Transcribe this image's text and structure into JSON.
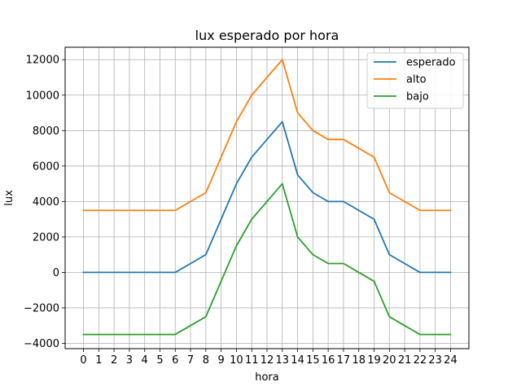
{
  "chart_data": {
    "type": "line",
    "title": "lux esperado por hora",
    "xlabel": "hora",
    "ylabel": "lux",
    "x": [
      0,
      1,
      2,
      3,
      4,
      5,
      6,
      7,
      8,
      9,
      10,
      11,
      12,
      13,
      14,
      15,
      16,
      17,
      18,
      19,
      20,
      21,
      22,
      23,
      24
    ],
    "x_ticks": [
      "0",
      "1",
      "2",
      "3",
      "4",
      "5",
      "6",
      "7",
      "8",
      "9",
      "10",
      "11",
      "12",
      "13",
      "14",
      "15",
      "16",
      "17",
      "18",
      "19",
      "20",
      "21",
      "22",
      "23",
      "24"
    ],
    "xlim": [
      -1.2,
      25.2
    ],
    "ylim": [
      -4300,
      12700
    ],
    "y_ticks": [
      -4000,
      -2000,
      0,
      2000,
      4000,
      6000,
      8000,
      10000,
      12000
    ],
    "y_tick_labels": [
      "−4000",
      "−2000",
      "0",
      "2000",
      "4000",
      "6000",
      "8000",
      "10000",
      "12000"
    ],
    "grid": true,
    "legend_position": "top-right",
    "series": [
      {
        "name": "esperado",
        "color": "#1f77b4",
        "values": [
          0,
          0,
          0,
          0,
          0,
          0,
          0,
          500,
          1000,
          3000,
          5000,
          6500,
          7500,
          8500,
          5500,
          4500,
          4000,
          4000,
          3500,
          3000,
          1000,
          500,
          0,
          0,
          0
        ]
      },
      {
        "name": "alto",
        "color": "#ff7f0e",
        "values": [
          3500,
          3500,
          3500,
          3500,
          3500,
          3500,
          3500,
          4000,
          4500,
          6500,
          8500,
          10000,
          11000,
          12000,
          9000,
          8000,
          7500,
          7500,
          7000,
          6500,
          4500,
          4000,
          3500,
          3500,
          3500
        ]
      },
      {
        "name": "bajo",
        "color": "#2ca02c",
        "values": [
          -3500,
          -3500,
          -3500,
          -3500,
          -3500,
          -3500,
          -3500,
          -3000,
          -2500,
          -500,
          1500,
          3000,
          4000,
          5000,
          2000,
          1000,
          500,
          500,
          0,
          -500,
          -2500,
          -3000,
          -3500,
          -3500,
          -3500
        ]
      }
    ]
  }
}
